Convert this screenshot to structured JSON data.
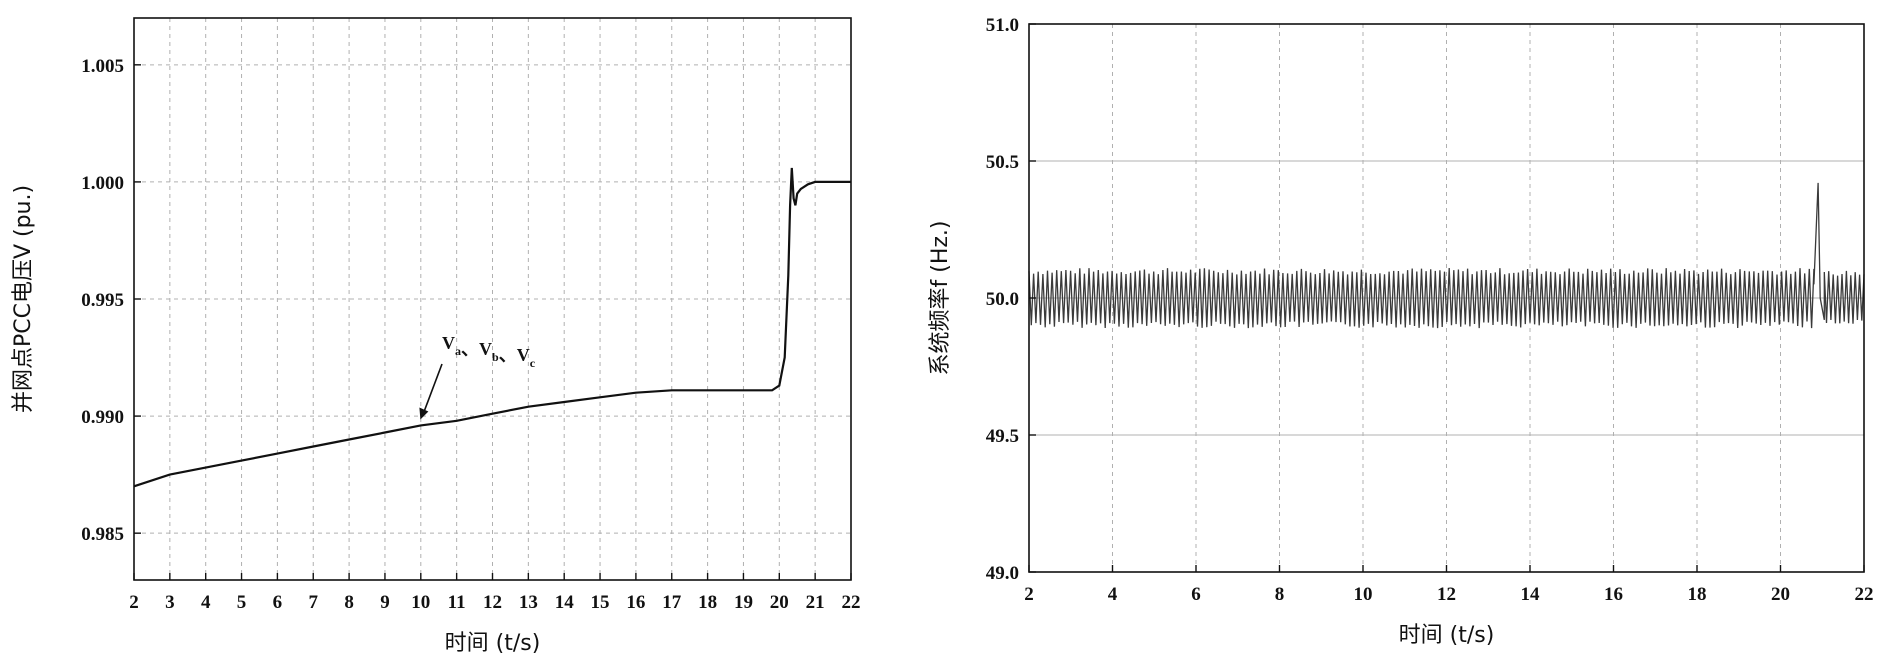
{
  "chart_data": [
    {
      "type": "line",
      "xlabel": "时间 (t/s)",
      "ylabel": "并网点PCC电压V (pu.)",
      "xlim": [
        2,
        22
      ],
      "ylim": [
        0.983,
        1.007
      ],
      "xticks": [
        2,
        3,
        4,
        5,
        6,
        7,
        8,
        9,
        10,
        11,
        12,
        13,
        14,
        15,
        16,
        17,
        18,
        19,
        20,
        21,
        22
      ],
      "yticks": [
        "0.985",
        "0.990",
        "0.995",
        "1.000",
        "1.005"
      ],
      "grid": true,
      "annotation": {
        "text": "Va、Vb、Vc",
        "parts": [
          {
            "base": "V",
            "sub": "a"
          },
          {
            "sep": "、"
          },
          {
            "base": "V",
            "sub": "b"
          },
          {
            "sep": "、"
          },
          {
            "base": "V",
            "sub": "c"
          }
        ],
        "points_to": [
          10.1,
          0.9896
        ]
      },
      "series": [
        {
          "color": "#111111",
          "x": [
            2,
            3,
            4,
            5,
            6,
            7,
            8,
            9,
            10,
            11,
            12,
            13,
            14,
            15,
            16,
            17,
            18,
            19,
            19.8,
            20.0,
            20.15,
            20.25,
            20.3,
            20.35,
            20.4,
            20.45,
            20.5,
            20.6,
            20.8,
            21,
            22
          ],
          "y": [
            0.987,
            0.9875,
            0.9878,
            0.9881,
            0.9884,
            0.9887,
            0.989,
            0.9893,
            0.9896,
            0.9898,
            0.9901,
            0.9904,
            0.9906,
            0.9908,
            0.991,
            0.9911,
            0.9911,
            0.9911,
            0.9911,
            0.9913,
            0.9925,
            0.996,
            0.999,
            1.0006,
            0.9993,
            0.999,
            0.9995,
            0.9997,
            0.9999,
            1.0,
            1.0
          ]
        }
      ]
    },
    {
      "type": "line",
      "xlabel": "时间 (t/s)",
      "ylabel": "系统频率f (Hz.)",
      "xlim": [
        2,
        22
      ],
      "ylim": [
        49.0,
        51.0
      ],
      "xticks": [
        2,
        4,
        6,
        8,
        10,
        12,
        14,
        16,
        18,
        20,
        22
      ],
      "yticks": [
        "49.0",
        "49.5",
        "50.0",
        "50.5",
        "51.0"
      ],
      "grid": true,
      "series": [
        {
          "color": "#3a3a3a",
          "oscillation": {
            "center": 50.0,
            "amplitude": 0.11,
            "x_range": [
              2,
              20.8
            ]
          },
          "spike": {
            "x": [
              20.8,
              20.9,
              20.95,
              21.05
            ],
            "y": [
              50.05,
              50.42,
              50.0,
              49.92
            ]
          },
          "after": {
            "center": 50.0,
            "amplitude": 0.1,
            "x_range": [
              21.05,
              22
            ]
          }
        }
      ]
    }
  ]
}
